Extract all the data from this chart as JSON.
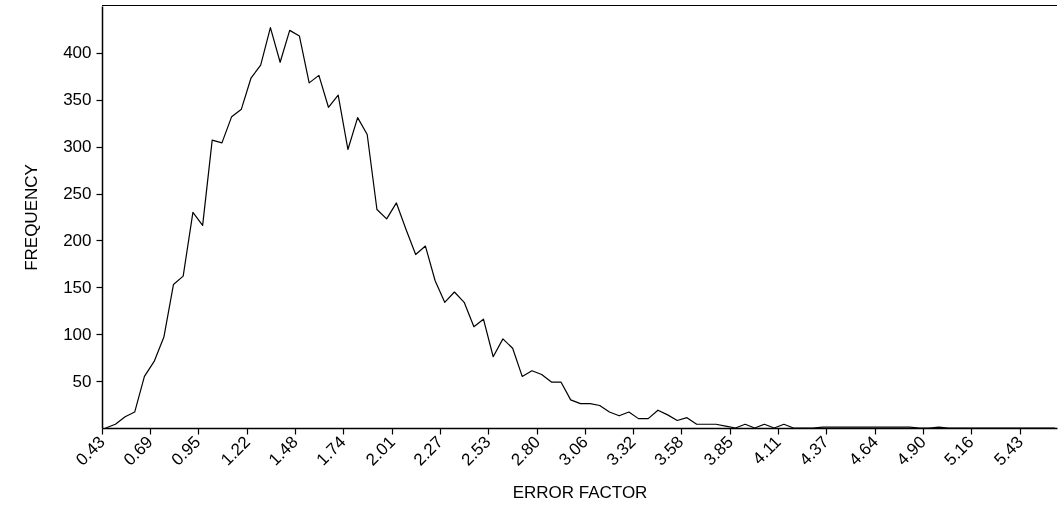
{
  "chart_data": {
    "type": "line",
    "xlabel": "ERROR FACTOR",
    "ylabel": "FREQUENCY",
    "xlim": [
      0.43,
      5.63
    ],
    "xticks": [
      0.43,
      0.69,
      0.95,
      1.22,
      1.48,
      1.74,
      2.01,
      2.27,
      2.53,
      {
        "value": 2.8,
        "label": "2.80"
      },
      3.06,
      3.32,
      3.58,
      3.85,
      4.11,
      4.37,
      4.64,
      {
        "value": 4.9,
        "label": "4.90"
      },
      5.16,
      5.43
    ],
    "ylim": [
      0,
      450
    ],
    "yticks": [
      50,
      100,
      150,
      200,
      250,
      300,
      350,
      400
    ],
    "grid": false,
    "marker": "none",
    "line_style": "solid",
    "x": [
      0.45,
      0.503,
      0.556,
      0.608,
      0.661,
      0.714,
      0.767,
      0.819,
      0.872,
      0.925,
      0.978,
      1.03,
      1.083,
      1.136,
      1.189,
      1.241,
      1.294,
      1.347,
      1.4,
      1.452,
      1.505,
      1.558,
      1.611,
      1.663,
      1.716,
      1.769,
      1.822,
      1.874,
      1.927,
      1.98,
      2.033,
      2.085,
      2.138,
      2.191,
      2.244,
      2.296,
      2.349,
      2.402,
      2.455,
      2.507,
      2.56,
      2.613,
      2.666,
      2.718,
      2.771,
      2.824,
      2.877,
      2.929,
      2.982,
      3.035,
      3.088,
      3.14,
      3.193,
      3.246,
      3.299,
      3.351,
      3.404,
      3.457,
      3.51,
      3.562,
      3.615,
      3.668,
      3.721,
      3.773,
      3.826,
      3.879,
      3.932,
      3.984,
      4.037,
      4.09,
      4.143,
      4.195,
      4.248,
      4.301,
      4.354,
      4.406,
      4.459,
      4.512,
      4.565,
      4.617,
      4.67,
      4.723,
      4.776,
      4.828,
      4.881,
      4.934,
      4.987,
      5.039,
      5.092,
      5.145,
      5.198,
      5.25,
      5.303,
      5.356,
      5.409,
      5.461,
      5.514,
      5.567,
      5.62
    ],
    "series": [
      {
        "color": "#000000",
        "values": [
          0,
          4,
          12,
          17,
          55,
          71,
          97,
          153,
          162,
          230,
          216,
          307,
          304,
          332,
          340,
          373,
          387,
          427,
          390,
          424,
          418,
          368,
          376,
          342,
          355,
          297,
          331,
          313,
          233,
          223,
          240,
          212,
          185,
          194,
          157,
          134,
          145,
          134,
          108,
          116,
          76,
          95,
          85,
          55,
          61,
          57,
          49,
          49,
          30,
          26,
          26,
          24,
          17,
          13,
          17,
          10,
          10,
          19,
          14,
          8,
          11,
          4,
          4,
          4,
          2,
          0,
          4,
          0,
          4,
          0,
          4,
          0,
          0,
          0,
          1,
          1,
          1,
          1,
          1,
          1,
          1,
          1,
          1,
          1,
          0,
          0,
          1,
          0,
          0,
          0,
          0,
          0,
          0,
          0,
          0,
          0,
          0,
          0,
          0
        ]
      }
    ]
  }
}
